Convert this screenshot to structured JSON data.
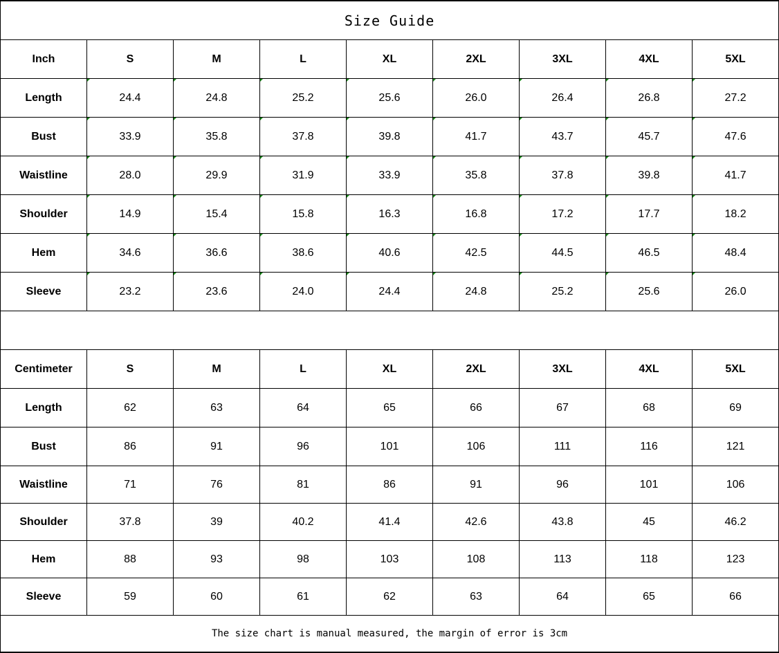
{
  "title": "Size Guide",
  "sizes": [
    "S",
    "M",
    "L",
    "XL",
    "2XL",
    "3XL",
    "4XL",
    "5XL"
  ],
  "inch_table": {
    "unit_label": "Inch",
    "rows": [
      {
        "label": "Length",
        "values": [
          "24.4",
          "24.8",
          "25.2",
          "25.6",
          "26.0",
          "26.4",
          "26.8",
          "27.2"
        ]
      },
      {
        "label": "Bust",
        "values": [
          "33.9",
          "35.8",
          "37.8",
          "39.8",
          "41.7",
          "43.7",
          "45.7",
          "47.6"
        ]
      },
      {
        "label": "Waistline",
        "values": [
          "28.0",
          "29.9",
          "31.9",
          "33.9",
          "35.8",
          "37.8",
          "39.8",
          "41.7"
        ]
      },
      {
        "label": "Shoulder",
        "values": [
          "14.9",
          "15.4",
          "15.8",
          "16.3",
          "16.8",
          "17.2",
          "17.7",
          "18.2"
        ]
      },
      {
        "label": "Hem",
        "values": [
          "34.6",
          "36.6",
          "38.6",
          "40.6",
          "42.5",
          "44.5",
          "46.5",
          "48.4"
        ]
      },
      {
        "label": "Sleeve",
        "values": [
          "23.2",
          "23.6",
          "24.0",
          "24.4",
          "24.8",
          "25.2",
          "25.6",
          "26.0"
        ]
      }
    ]
  },
  "cm_table": {
    "unit_label": "Centimeter",
    "rows": [
      {
        "label": "Length",
        "values": [
          "62",
          "63",
          "64",
          "65",
          "66",
          "67",
          "68",
          "69"
        ]
      },
      {
        "label": "Bust",
        "values": [
          "86",
          "91",
          "96",
          "101",
          "106",
          "111",
          "116",
          "121"
        ]
      },
      {
        "label": "Waistline",
        "values": [
          "71",
          "76",
          "81",
          "86",
          "91",
          "96",
          "101",
          "106"
        ]
      },
      {
        "label": "Shoulder",
        "values": [
          "37.8",
          "39",
          "40.2",
          "41.4",
          "42.6",
          "43.8",
          "45",
          "46.2"
        ]
      },
      {
        "label": "Hem",
        "values": [
          "88",
          "93",
          "98",
          "103",
          "108",
          "113",
          "118",
          "123"
        ]
      },
      {
        "label": "Sleeve",
        "values": [
          "59",
          "60",
          "61",
          "62",
          "63",
          "64",
          "65",
          "66"
        ]
      }
    ]
  },
  "footer_note": "The size chart is manual measured, the margin of error is 3cm"
}
